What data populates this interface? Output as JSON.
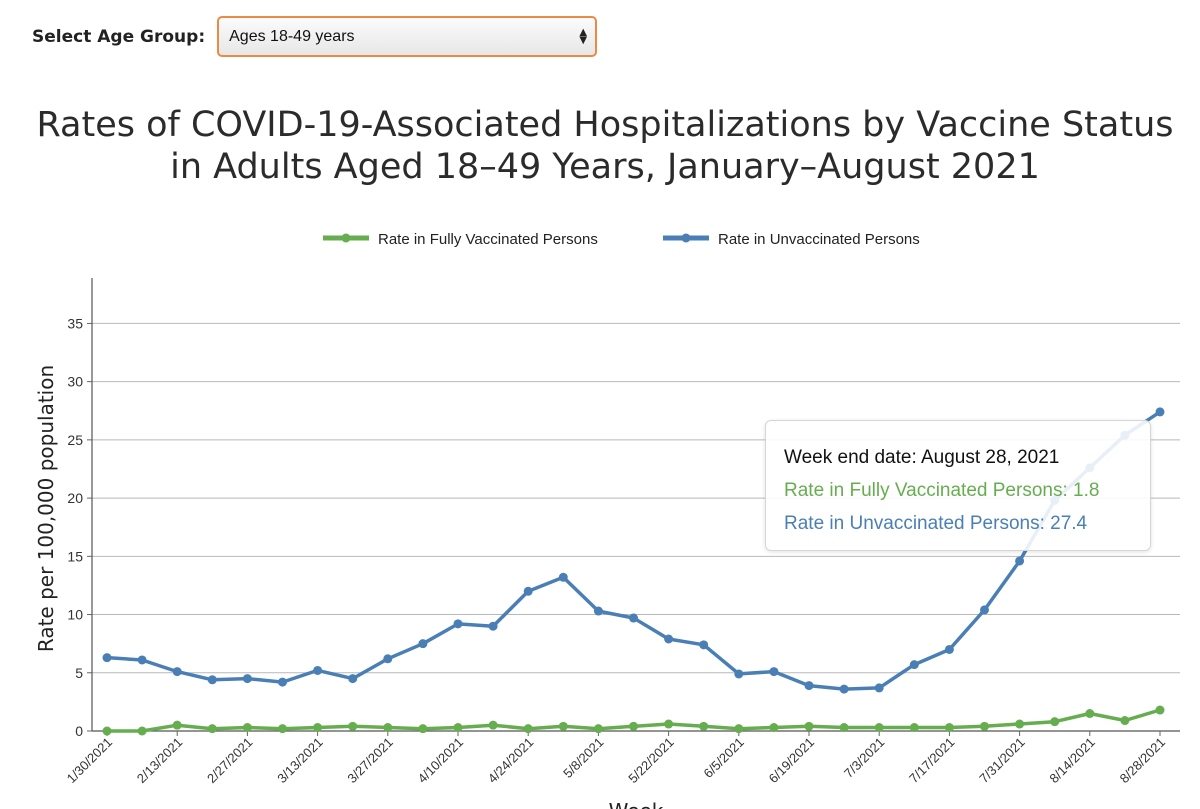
{
  "selector": {
    "label": "Select Age Group:",
    "selected": "Ages 18-49 years"
  },
  "chart_data": {
    "type": "line",
    "title_lines": [
      "Rates of COVID-19-Associated Hospitalizations by Vaccine Status",
      "in Adults Aged 18–49 Years, January–August 2021"
    ],
    "ylabel": "Rate per 100,000 population",
    "xlabel": "Week",
    "ylim": [
      0,
      38.9
    ],
    "yticks": [
      0,
      5,
      10,
      15,
      20,
      25,
      30,
      35
    ],
    "grid": true,
    "legend_position": "top",
    "x": [
      "1/30/2021",
      "2/6/2021",
      "2/13/2021",
      "2/20/2021",
      "2/27/2021",
      "3/6/2021",
      "3/13/2021",
      "3/20/2021",
      "3/27/2021",
      "4/3/2021",
      "4/10/2021",
      "4/17/2021",
      "4/24/2021",
      "5/1/2021",
      "5/8/2021",
      "5/15/2021",
      "5/22/2021",
      "5/29/2021",
      "6/5/2021",
      "6/12/2021",
      "6/19/2021",
      "6/26/2021",
      "7/3/2021",
      "7/10/2021",
      "7/17/2021",
      "7/24/2021",
      "7/31/2021",
      "8/7/2021",
      "8/14/2021",
      "8/21/2021",
      "8/28/2021"
    ],
    "xtick_labels": [
      "1/30/2021",
      "2/13/2021",
      "2/27/2021",
      "3/13/2021",
      "3/27/2021",
      "4/10/2021",
      "4/24/2021",
      "5/8/2021",
      "5/22/2021",
      "6/5/2021",
      "6/19/2021",
      "7/3/2021",
      "7/17/2021",
      "7/31/2021",
      "8/14/2021",
      "8/28/2021"
    ],
    "series": [
      {
        "name": "Rate in Fully Vaccinated Persons",
        "color": "#66ad50",
        "values": [
          0.0,
          0.0,
          0.5,
          0.2,
          0.3,
          0.2,
          0.3,
          0.4,
          0.3,
          0.2,
          0.3,
          0.5,
          0.2,
          0.4,
          0.2,
          0.4,
          0.6,
          0.4,
          0.2,
          0.3,
          0.4,
          0.3,
          0.3,
          0.3,
          0.3,
          0.4,
          0.6,
          0.8,
          1.5,
          0.9,
          1.8
        ]
      },
      {
        "name": "Rate in Unvaccinated Persons",
        "color": "#4a7fb5",
        "values": [
          6.3,
          6.1,
          5.1,
          4.4,
          4.5,
          4.2,
          5.2,
          4.5,
          6.2,
          7.5,
          9.2,
          9.0,
          12.0,
          13.2,
          10.3,
          9.7,
          7.9,
          7.4,
          4.9,
          5.1,
          3.9,
          3.6,
          3.7,
          5.7,
          7.0,
          10.4,
          14.6,
          19.8,
          22.6,
          25.4,
          27.4
        ]
      }
    ],
    "tooltip": {
      "date": "Week end date: August 28, 2021",
      "vaccinated": "Rate in Fully Vaccinated Persons: 1.8",
      "unvaccinated": "Rate in Unvaccinated Persons: 27.4"
    }
  }
}
